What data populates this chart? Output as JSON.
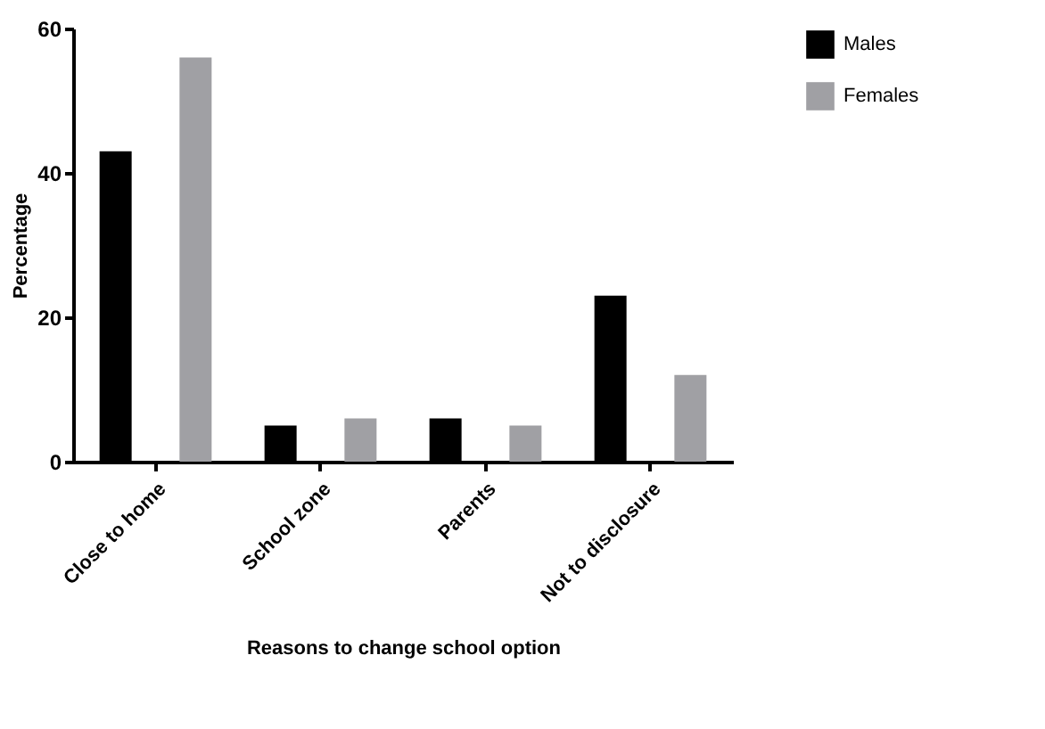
{
  "chart_data": {
    "type": "bar",
    "xlabel": "Reasons to change school option",
    "ylabel": "Percentage",
    "categories": [
      "Close to home",
      "School zone",
      "Parents",
      "Not to disclosure"
    ],
    "series": [
      {
        "name": "Males",
        "color": "#000000",
        "values": [
          43,
          5,
          6,
          23
        ]
      },
      {
        "name": "Females",
        "color": "#a0a0a4",
        "values": [
          56,
          6,
          5,
          12
        ]
      }
    ],
    "ylim": [
      0,
      60
    ],
    "yticks": [
      0,
      20,
      40,
      60
    ],
    "grid": false,
    "legend": "top right"
  }
}
